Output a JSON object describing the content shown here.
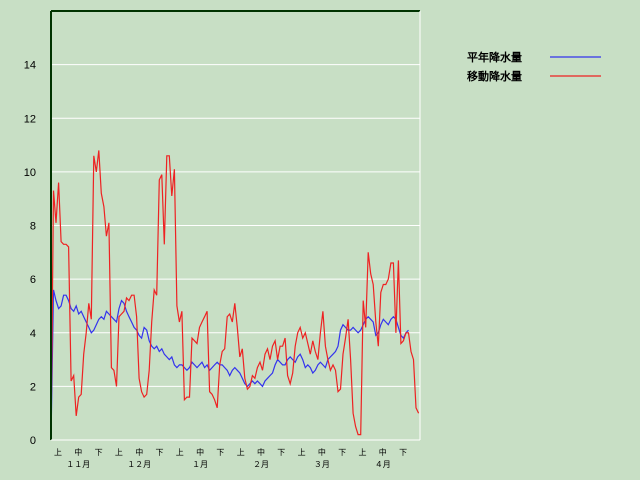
{
  "chart_data": {
    "type": "line",
    "title": "",
    "xlabel": "",
    "ylabel": "",
    "ylim": [
      0,
      16
    ],
    "yticks": [
      0,
      2,
      4,
      6,
      8,
      10,
      12,
      14
    ],
    "grid": true,
    "legend_position": "top-right",
    "x_ticks": [
      "上",
      "中",
      "下",
      "上",
      "中",
      "下",
      "上",
      "中",
      "下",
      "上",
      "中",
      "下",
      "上",
      "中",
      "下",
      "上",
      "中",
      "下"
    ],
    "months": [
      "１１月",
      "１２月",
      "１月",
      "２月",
      "３月",
      "４月"
    ],
    "series": [
      {
        "name": "平年降水量",
        "color": "#3333ee",
        "values": [
          0,
          5.6,
          5.2,
          4.9,
          5.0,
          5.4,
          5.4,
          5.2,
          4.9,
          4.8,
          5.0,
          4.7,
          4.8,
          4.6,
          4.4,
          4.2,
          4.0,
          4.1,
          4.3,
          4.5,
          4.6,
          4.5,
          4.8,
          4.7,
          4.6,
          4.5,
          4.4,
          4.9,
          5.2,
          5.1,
          4.8,
          4.6,
          4.4,
          4.2,
          4.1,
          3.9,
          3.8,
          4.2,
          4.1,
          3.7,
          3.5,
          3.4,
          3.5,
          3.3,
          3.4,
          3.2,
          3.1,
          3.0,
          3.1,
          2.8,
          2.7,
          2.8,
          2.8,
          2.7,
          2.6,
          2.7,
          2.9,
          2.8,
          2.7,
          2.8,
          2.9,
          2.7,
          2.8,
          2.6,
          2.7,
          2.8,
          2.9,
          2.8,
          2.8,
          2.7,
          2.6,
          2.4,
          2.6,
          2.7,
          2.6,
          2.5,
          2.3,
          2.1,
          2.0,
          2.1,
          2.2,
          2.1,
          2.2,
          2.1,
          2.0,
          2.2,
          2.3,
          2.4,
          2.5,
          2.8,
          3.0,
          2.9,
          2.8,
          2.8,
          3.0,
          3.1,
          3.0,
          2.9,
          3.1,
          3.2,
          3.0,
          2.7,
          2.8,
          2.7,
          2.5,
          2.6,
          2.8,
          2.9,
          2.8,
          2.7,
          3.0,
          3.1,
          3.2,
          3.3,
          3.5,
          4.1,
          4.3,
          4.2,
          4.1,
          4.1,
          4.2,
          4.1,
          4.0,
          4.1,
          4.3,
          4.5,
          4.6,
          4.5,
          4.4,
          3.9,
          4.0,
          4.3,
          4.5,
          4.4,
          4.3,
          4.5,
          4.6,
          4.5,
          4.2,
          3.9,
          3.8,
          4.0,
          4.1
        ]
      },
      {
        "name": "移動降水量",
        "color": "#ee2222",
        "values": [
          0,
          9.3,
          8.1,
          9.6,
          7.4,
          7.3,
          7.3,
          7.2,
          2.2,
          2.4,
          0.9,
          1.6,
          1.7,
          3.2,
          4.0,
          5.1,
          4.5,
          10.6,
          10.0,
          10.8,
          9.2,
          8.7,
          7.6,
          8.1,
          2.7,
          2.6,
          2.0,
          4.6,
          4.7,
          4.8,
          5.3,
          5.2,
          5.4,
          5.4,
          4.6,
          2.3,
          1.8,
          1.6,
          1.7,
          2.6,
          4.4,
          5.6,
          5.4,
          9.7,
          9.9,
          7.3,
          10.6,
          10.6,
          9.1,
          10.1,
          5.0,
          4.4,
          4.8,
          1.5,
          1.6,
          1.6,
          3.8,
          3.7,
          3.6,
          4.2,
          4.4,
          4.6,
          4.8,
          1.8,
          1.7,
          1.5,
          1.2,
          2.8,
          3.3,
          3.4,
          4.6,
          4.7,
          4.4,
          5.1,
          4.2,
          3.1,
          3.4,
          2.3,
          1.9,
          2.0,
          2.4,
          2.3,
          2.7,
          2.9,
          2.6,
          3.2,
          3.4,
          3.0,
          3.5,
          3.7,
          3.0,
          3.5,
          3.5,
          3.8,
          2.4,
          2.1,
          2.5,
          3.5,
          4.0,
          4.2,
          3.8,
          4.0,
          3.6,
          3.2,
          3.7,
          3.3,
          3.0,
          4.0,
          4.8,
          3.5,
          3.0,
          2.6,
          2.8,
          2.6,
          1.8,
          1.9,
          3.2,
          3.8,
          4.5,
          3.0,
          1.0,
          0.5,
          0.2,
          0.2,
          5.2,
          4.2,
          7.0,
          6.2,
          5.8,
          4.4,
          3.5,
          5.5,
          5.8,
          5.8,
          6.0,
          6.6,
          6.6,
          4.0,
          6.7,
          3.6,
          3.7,
          4.0,
          4.0,
          3.3,
          3.0,
          1.2,
          1.0
        ]
      }
    ]
  }
}
